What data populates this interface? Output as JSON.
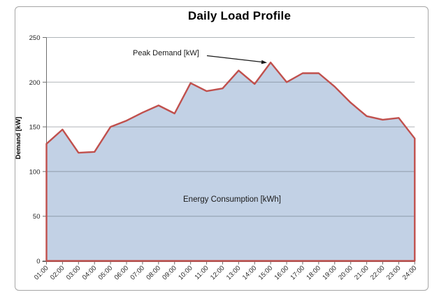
{
  "chart_data": {
    "type": "area",
    "title": "Daily Load Profile",
    "xlabel": "",
    "ylabel": "Demand [kW]",
    "ylim": [
      0,
      250
    ],
    "yticks": [
      0,
      50,
      100,
      150,
      200,
      250
    ],
    "grid": true,
    "legend": "none",
    "categories": [
      "01:00",
      "02:00",
      "03:00",
      "04:00",
      "05:00",
      "06:00",
      "07:00",
      "08:00",
      "09:00",
      "10:00",
      "11:00",
      "12:00",
      "13:00",
      "14:00",
      "15:00",
      "16:00",
      "17:00",
      "18:00",
      "19:00",
      "20:00",
      "21:00",
      "22:00",
      "23:00",
      "24:00"
    ],
    "series": [
      {
        "name": "Demand",
        "values": [
          131,
          147,
          121,
          122,
          150,
          157,
          166,
          174,
          165,
          199,
          190,
          193,
          213,
          198,
          222,
          200,
          210,
          210,
          195,
          177,
          162,
          158,
          160,
          137
        ]
      }
    ],
    "annotations": [
      {
        "text": "Peak Demand [kW]",
        "points_to_category": "15:00",
        "points_to_value": 222
      },
      {
        "text": "Energy Consumption [kWh]",
        "position": "inside-area"
      }
    ],
    "colors": {
      "area_fill": "#c2d1e5",
      "line": "#c0504d",
      "gridline": "#505a64",
      "axis": "#6e6e6e",
      "frame_border": "#a6a6a6"
    }
  }
}
